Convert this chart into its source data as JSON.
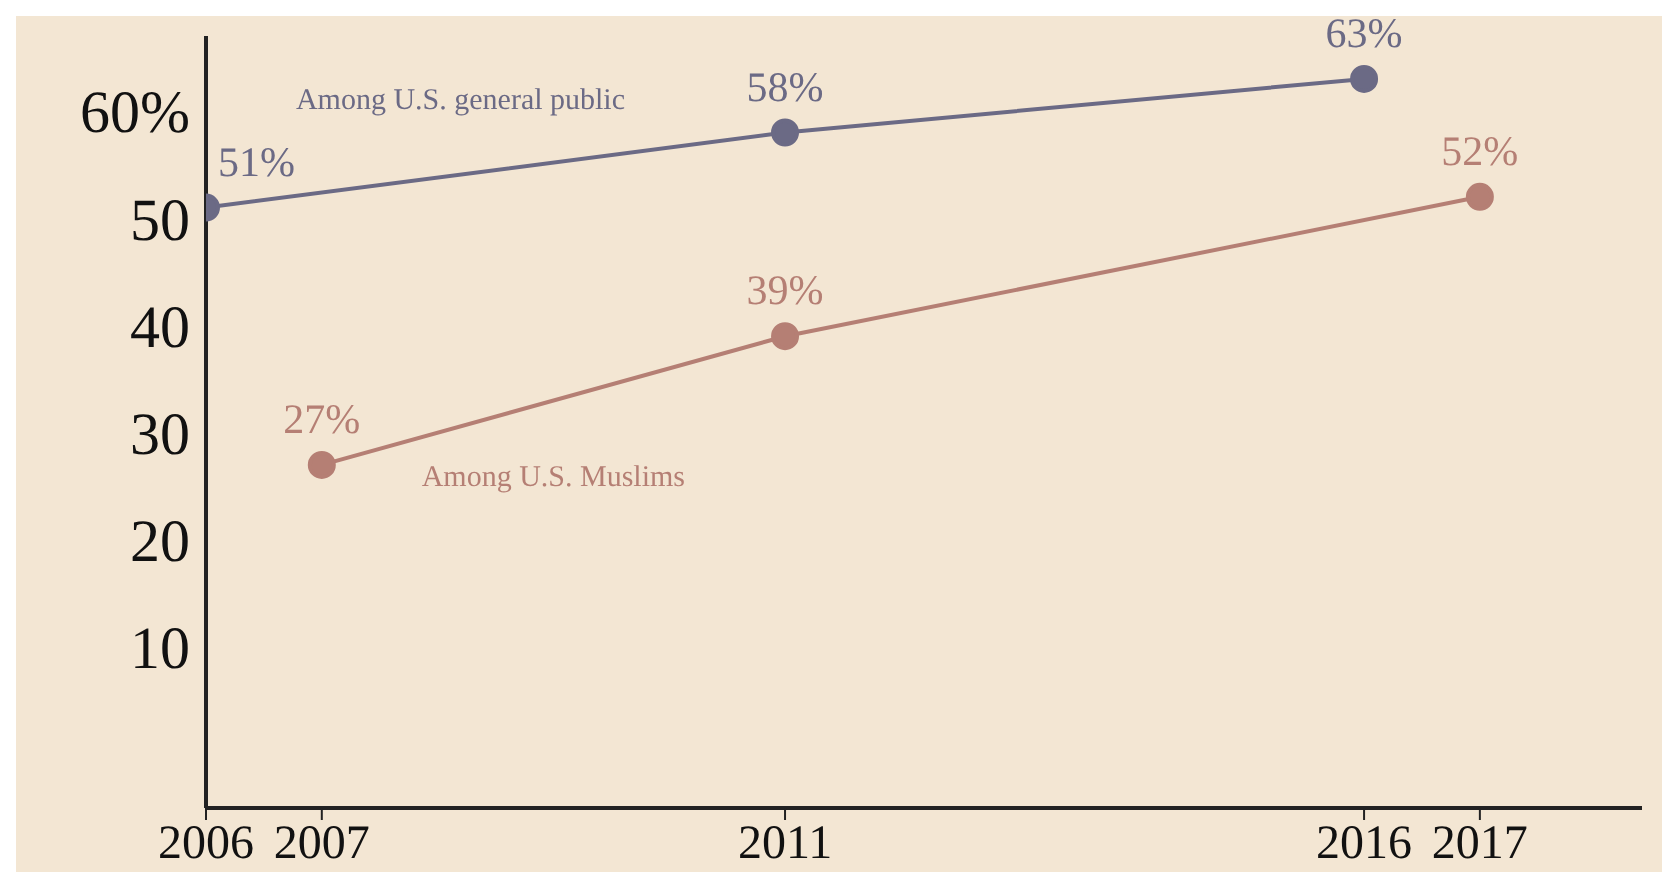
{
  "chart_data": {
    "type": "line",
    "marker": "circle",
    "xlim": [
      2006,
      2018.4
    ],
    "xticks": [
      2006,
      2007,
      2011,
      2016,
      2017
    ],
    "ylim": [
      -5,
      67
    ],
    "yticks": [
      10,
      20,
      30,
      40,
      50,
      {
        "value": 60,
        "label": "60%"
      }
    ],
    "series": [
      {
        "name": "Among U.S. general public",
        "color": "#6b6a85",
        "x": [
          2006,
          2011,
          2016
        ],
        "values": [
          51,
          58,
          63
        ],
        "value_labels": [
          "51%",
          "58%",
          "63%"
        ]
      },
      {
        "name": "Among U.S. Muslims",
        "color": "#b57f74",
        "x": [
          2007,
          2011,
          2017
        ],
        "values": [
          27,
          39,
          52
        ],
        "value_labels": [
          "27%",
          "39%",
          "52%"
        ]
      }
    ]
  }
}
